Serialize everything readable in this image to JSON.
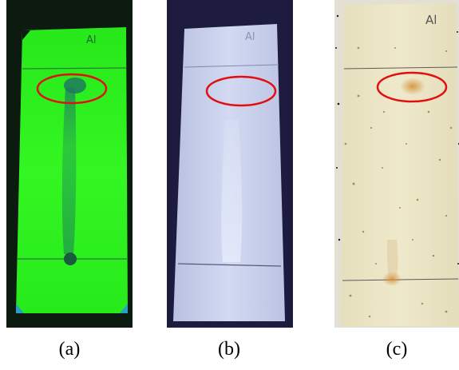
{
  "panels": [
    {
      "id": "a",
      "caption": "(a)",
      "plate_mark": "Al",
      "colors": {
        "background": "#0c1a10",
        "plate": "#2bf01c",
        "plate_light": "#44ff33",
        "spot": "#1f7a5e",
        "streak": "#2a9a55",
        "line": "#2a6a3a",
        "circle": "#e01010"
      }
    },
    {
      "id": "b",
      "caption": "(b)",
      "plate_mark": "Al",
      "colors": {
        "background": "#1d1b3f",
        "plate": "#c9d1ec",
        "plate_light": "#dde3f7",
        "streak": "#d8e0f5",
        "line": "#6a6f8a",
        "circle": "#e01010"
      }
    },
    {
      "id": "c",
      "caption": "(c)",
      "plate_mark": "Al",
      "colors": {
        "background": "#e8e4d8",
        "plate": "#ece6c6",
        "plate_light": "#f2edd2",
        "spot": "#d89a45",
        "speckle": "#b06a2a",
        "line": "#555555",
        "circle": "#e01010"
      }
    }
  ]
}
